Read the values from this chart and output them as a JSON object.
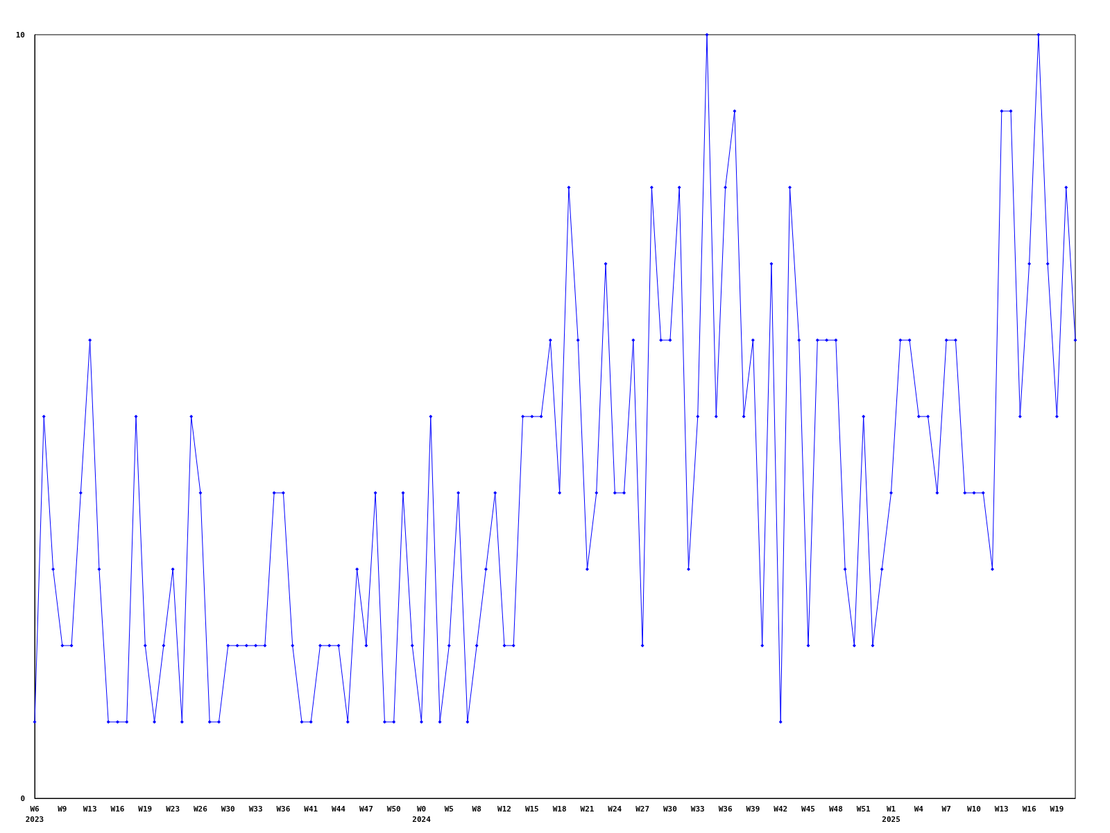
{
  "chart_data": {
    "type": "line",
    "categories": [
      "W6\n2023",
      null,
      null,
      "W9",
      null,
      null,
      "W13",
      null,
      null,
      "W16",
      null,
      null,
      "W19",
      null,
      null,
      "W23",
      null,
      null,
      "W26",
      null,
      null,
      "W30",
      null,
      null,
      "W33",
      null,
      null,
      "W36",
      null,
      null,
      "W41",
      null,
      null,
      "W44",
      null,
      null,
      "W47",
      null,
      null,
      "W50",
      null,
      null,
      "W0\n2024",
      null,
      null,
      "W5",
      null,
      null,
      "W8",
      null,
      null,
      "W12",
      null,
      null,
      "W15",
      null,
      null,
      "W18",
      null,
      null,
      "W21",
      null,
      null,
      "W24",
      null,
      null,
      "W27",
      null,
      null,
      "W30",
      null,
      null,
      "W33",
      null,
      null,
      "W36",
      null,
      null,
      "W39",
      null,
      null,
      "W42",
      null,
      null,
      "W45",
      null,
      null,
      "W48",
      null,
      null,
      "W51",
      null,
      null,
      "W1\n2025",
      null,
      null,
      "W4",
      null,
      null,
      "W7",
      null,
      null,
      "W10",
      null,
      null,
      "W13",
      null,
      null,
      "W16",
      null,
      null,
      "W19",
      null,
      null
    ],
    "series": [
      {
        "color": "#0000ff",
        "values": [
          1,
          5,
          3,
          2,
          2,
          4,
          6,
          3,
          1,
          1,
          1,
          5,
          2,
          1,
          2,
          3,
          1,
          5,
          4,
          1,
          1,
          2,
          2,
          2,
          2,
          2,
          4,
          4,
          2,
          1,
          1,
          2,
          2,
          2,
          1,
          3,
          2,
          4,
          1,
          1,
          4,
          2,
          1,
          5,
          1,
          2,
          4,
          1,
          2,
          3,
          4,
          2,
          2,
          5,
          5,
          5,
          6,
          4,
          8,
          6,
          3,
          4,
          7,
          4,
          4,
          6,
          2,
          8,
          6,
          6,
          8,
          3,
          5,
          10,
          5,
          8,
          9,
          5,
          6,
          2,
          7,
          1,
          8,
          6,
          2,
          6,
          6,
          6,
          3,
          2,
          5,
          2,
          3,
          4,
          6,
          6,
          5,
          5,
          4,
          6,
          6,
          4,
          4,
          4,
          3,
          9,
          9,
          5,
          7,
          10,
          7,
          5,
          8,
          6
        ]
      }
    ],
    "ylim": [
      0,
      10
    ],
    "yticks": [
      0,
      10
    ],
    "grid": false,
    "marker": "diamond",
    "line_style": "solid"
  }
}
